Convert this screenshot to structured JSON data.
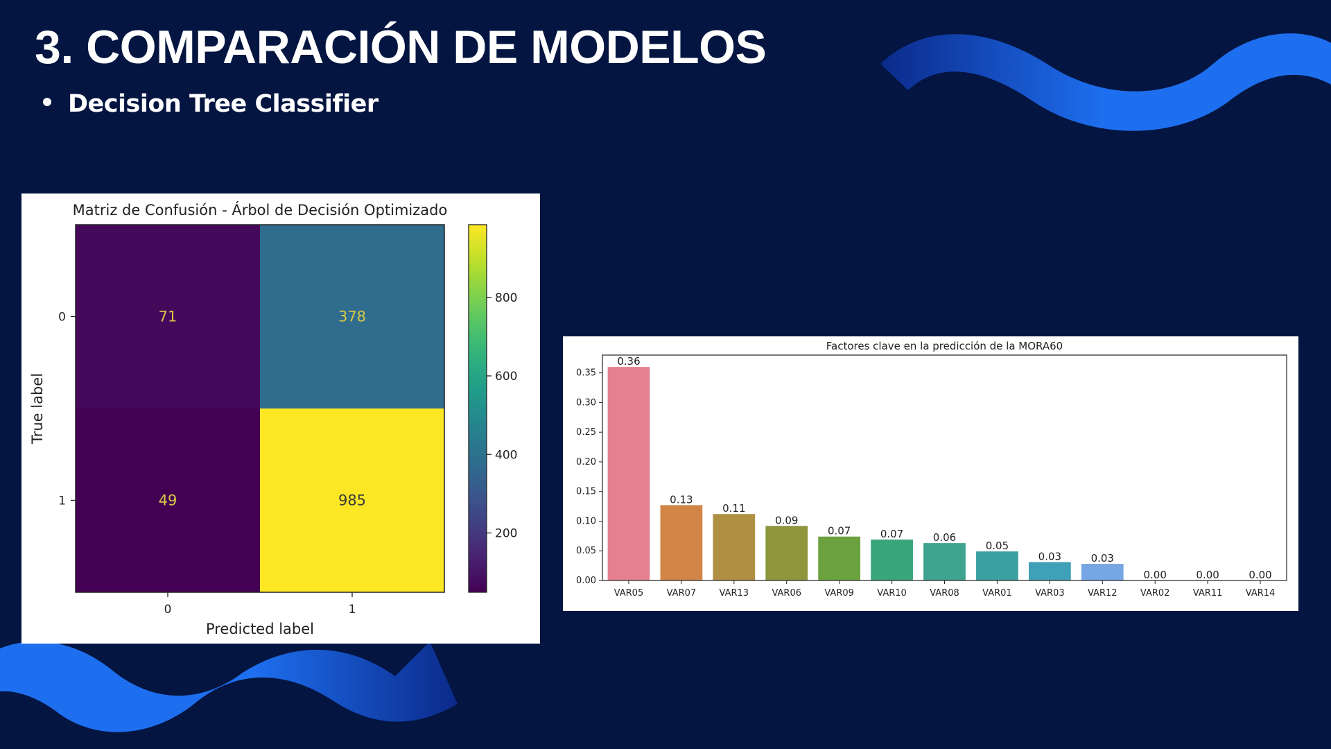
{
  "slide": {
    "title": "3. COMPARACIÓN DE MODELOS",
    "bullet": "Decision Tree Classifier"
  },
  "colors": {
    "background": "#031540",
    "wave_dark": "#0b2a8a",
    "wave_light": "#1e6ff0"
  },
  "chart_data": [
    {
      "type": "heatmap",
      "title": "Matriz de Confusión - Árbol de Decisión Optimizado",
      "xlabel": "Predicted label",
      "ylabel": "True label",
      "x_categories": [
        "0",
        "1"
      ],
      "y_categories": [
        "0",
        "1"
      ],
      "values": [
        [
          71,
          378
        ],
        [
          49,
          985
        ]
      ],
      "colormap": "viridis",
      "colorbar_range": [
        49,
        985
      ],
      "colorbar_ticks": [
        200,
        400,
        600,
        800
      ]
    },
    {
      "type": "bar",
      "title": "Factores clave en la predicción de la MORA60",
      "categories": [
        "VAR05",
        "VAR07",
        "VAR13",
        "VAR06",
        "VAR09",
        "VAR10",
        "VAR08",
        "VAR01",
        "VAR03",
        "VAR12",
        "VAR02",
        "VAR11",
        "VAR14"
      ],
      "values": [
        0.36,
        0.127,
        0.112,
        0.092,
        0.074,
        0.069,
        0.063,
        0.049,
        0.031,
        0.028,
        0.0,
        0.0,
        0.0
      ],
      "data_labels": [
        "0.36",
        "0.13",
        "0.11",
        "0.09",
        "0.07",
        "0.07",
        "0.06",
        "0.05",
        "0.03",
        "0.03",
        "0.00",
        "0.00",
        "0.00"
      ],
      "colors": [
        "#e58091",
        "#d28546",
        "#af8f42",
        "#8d963d",
        "#6ba13f",
        "#3ba57a",
        "#3ea38f",
        "#3c9fa0",
        "#3fa0b8",
        "#76a6e4",
        "#a4a7ea",
        "#cf9ce6",
        "#e88fc7"
      ],
      "xlabel": "",
      "ylabel": "",
      "ylim": [
        0,
        0.38
      ],
      "yticks": [
        0.0,
        0.05,
        0.1,
        0.15,
        0.2,
        0.25,
        0.3,
        0.35
      ],
      "ytick_labels": [
        "0.00",
        "0.05",
        "0.10",
        "0.15",
        "0.20",
        "0.25",
        "0.30",
        "0.35"
      ]
    }
  ]
}
